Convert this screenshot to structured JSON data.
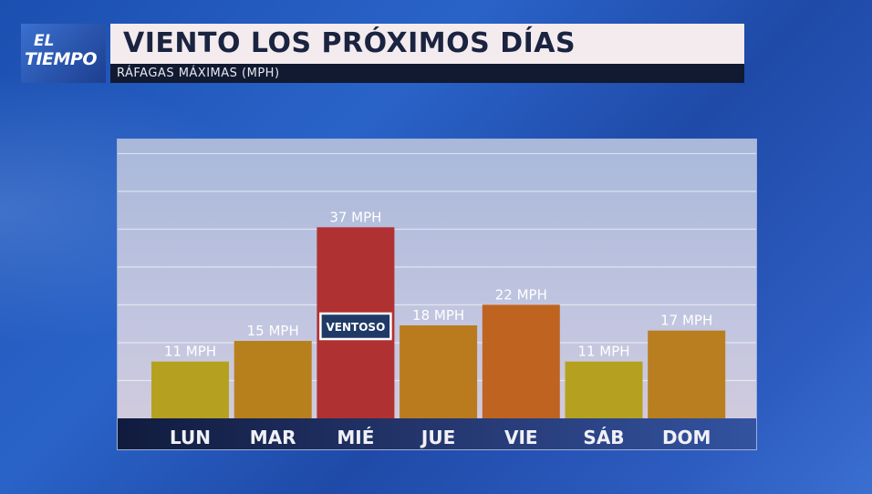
{
  "logo": {
    "line1": "EL",
    "line2": "TIEMPO"
  },
  "header": {
    "title": "VIENTO LOS PRÓXIMOS DÍAS",
    "subtitle": "RÁFAGAS MÁXIMAS (MPH)"
  },
  "chart_data": {
    "type": "bar",
    "categories": [
      "LUN",
      "MAR",
      "MIÉ",
      "JUE",
      "VIE",
      "SÁB",
      "DOM"
    ],
    "values": [
      11,
      15,
      37,
      18,
      22,
      11,
      17
    ],
    "data_labels": [
      "11 MPH",
      "15 MPH",
      "37 MPH",
      "18 MPH",
      "22 MPH",
      "11 MPH",
      "17 MPH"
    ],
    "colors": [
      "#b5a11f",
      "#b8801d",
      "#b03131",
      "#ba7b1f",
      "#bf6420",
      "#b5a11f",
      "#b97e1f"
    ],
    "annotation": {
      "category": "MIÉ",
      "text": "VENTOSO"
    },
    "ylim": [
      0,
      54
    ],
    "grid": true
  }
}
